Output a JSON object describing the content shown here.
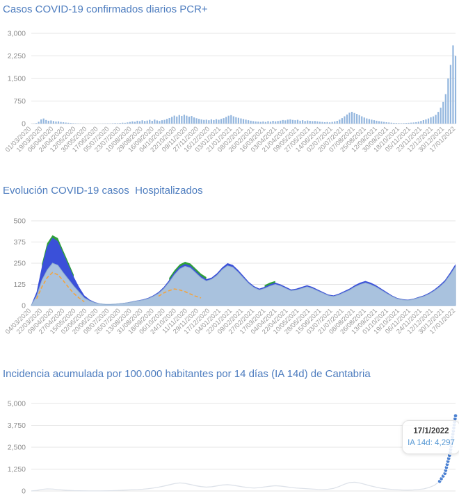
{
  "chart_data": [
    {
      "id": "pcr-daily",
      "type": "bar",
      "title": "Casos COVID-19 confirmados diarios PCR+",
      "bar_color": "#93b6de",
      "ylim": [
        0,
        3000
      ],
      "grid": true,
      "y_ticks": [
        {
          "v": 0,
          "label": "0"
        },
        {
          "v": 750,
          "label": "750"
        },
        {
          "v": 1500,
          "label": "1,500"
        },
        {
          "v": 2250,
          "label": "2,250"
        },
        {
          "v": 3000,
          "label": "3,000"
        }
      ],
      "x_labels": [
        "01/03/2020",
        "19/03/2020",
        "06/04/2020",
        "24/04/2020",
        "12/05/2020",
        "30/05/2020",
        "17/06/2020",
        "05/07/2020",
        "23/07/2020",
        "10/08/2020",
        "29/08/2020",
        "16/09/2020",
        "04/10/2020",
        "22/10/2020",
        "09/11/2020",
        "27/11/2020",
        "16/12/2020",
        "03/01/2021",
        "21/01/2021",
        "08/02/2021",
        "26/02/2021",
        "16/03/2021",
        "03/04/2021",
        "21/04/2021",
        "09/05/2021",
        "27/05/2021",
        "14/06/2021",
        "02/07/2021",
        "20/07/2021",
        "07/08/2021",
        "25/08/2021",
        "12/09/2021",
        "30/09/2021",
        "18/10/2021",
        "05/11/2021",
        "23/11/2021",
        "12/12/2021",
        "30/12/2021",
        "17/01/2022"
      ],
      "values": [
        2,
        5,
        18,
        60,
        140,
        170,
        120,
        95,
        105,
        85,
        70,
        75,
        55,
        45,
        35,
        28,
        20,
        14,
        10,
        7,
        5,
        4,
        3,
        2,
        2,
        3,
        2,
        4,
        3,
        5,
        6,
        8,
        6,
        12,
        18,
        14,
        22,
        30,
        26,
        40,
        55,
        75,
        60,
        95,
        80,
        110,
        88,
        100,
        125,
        92,
        135,
        105,
        88,
        112,
        125,
        155,
        185,
        225,
        265,
        235,
        285,
        255,
        295,
        262,
        232,
        252,
        205,
        178,
        158,
        138,
        122,
        132,
        112,
        142,
        118,
        148,
        128,
        158,
        182,
        222,
        262,
        282,
        242,
        212,
        192,
        172,
        152,
        132,
        112,
        96,
        82,
        72,
        66,
        58,
        72,
        56,
        82,
        64,
        92,
        74,
        86,
        98,
        118,
        108,
        132,
        142,
        122,
        112,
        126,
        96,
        112,
        86,
        102,
        92,
        82,
        86,
        76,
        62,
        56,
        46,
        52,
        42,
        56,
        72,
        92,
        132,
        182,
        242,
        302,
        362,
        392,
        352,
        322,
        282,
        242,
        202,
        172,
        152,
        132,
        112,
        96,
        82,
        72,
        56,
        46,
        38,
        30,
        24,
        20,
        17,
        14,
        17,
        22,
        26,
        32,
        38,
        48,
        65,
        90,
        115,
        140,
        170,
        210,
        240,
        290,
        390,
        530,
        720,
        980,
        1500,
        1950,
        2600,
        2250
      ]
    },
    {
      "id": "hospitalized",
      "type": "area",
      "title": "Evolución COVID-19 casos  Hospitalizados",
      "ylim": [
        0,
        500
      ],
      "grid": true,
      "y_ticks": [
        {
          "v": 0,
          "label": "0"
        },
        {
          "v": 125,
          "label": "125"
        },
        {
          "v": 250,
          "label": "250"
        },
        {
          "v": 375,
          "label": "375"
        },
        {
          "v": 500,
          "label": "500"
        }
      ],
      "x_labels": [
        "04/03/2020",
        "22/03/2020",
        "09/04/2020",
        "27/04/2020",
        "15/05/2020",
        "02/06/2020",
        "20/06/2020",
        "08/07/2020",
        "26/07/2020",
        "13/08/2020",
        "31/08/2020",
        "18/09/2020",
        "06/10/2020",
        "24/10/2020",
        "11/11/2020",
        "29/11/2020",
        "17/12/2020",
        "04/01/2021",
        "22/01/2021",
        "09/02/2021",
        "27/02/2021",
        "17/03/2021",
        "04/04/2021",
        "22/04/2021",
        "10/05/2021",
        "28/05/2021",
        "15/06/2021",
        "03/07/2021",
        "21/07/2021",
        "08/08/2021",
        "26/08/2021",
        "13/09/2021",
        "01/10/2021",
        "19/10/2021",
        "06/11/2021",
        "24/11/2021",
        "12/12/2021",
        "30/12/2021",
        "17/01/2022"
      ],
      "series": [
        {
          "name": "serie-verde",
          "type": "area",
          "color": "#2fa03a",
          "values": [
            null,
            null,
            245,
            368,
            415,
            398,
            326,
            254,
            182,
            null,
            null,
            null,
            null,
            null,
            null,
            null,
            null,
            null,
            null,
            null,
            null,
            null,
            null,
            null,
            null,
            null,
            163,
            208,
            243,
            258,
            248,
            218,
            188,
            168,
            null,
            null,
            null,
            null,
            null,
            null,
            null,
            null,
            null,
            null,
            120,
            135,
            145,
            null,
            null,
            null,
            null,
            null,
            null,
            null,
            null,
            null,
            null,
            null,
            null,
            null,
            null,
            null,
            null,
            null,
            null,
            null,
            null,
            null,
            null,
            null,
            null,
            null,
            null,
            null,
            null,
            null,
            null,
            null,
            null,
            null,
            null
          ]
        },
        {
          "name": "serie-azul",
          "type": "area",
          "color": "#3a50d9",
          "values": [
            5,
            80,
            230,
            350,
            400,
            380,
            310,
            240,
            170,
            110,
            60,
            35,
            20,
            12,
            8,
            8,
            10,
            14,
            18,
            24,
            30,
            36,
            45,
            60,
            80,
            110,
            150,
            195,
            230,
            245,
            235,
            205,
            175,
            155,
            165,
            190,
            225,
            250,
            240,
            210,
            175,
            140,
            115,
            100,
            110,
            125,
            135,
            125,
            110,
            95,
            100,
            110,
            120,
            110,
            95,
            80,
            65,
            60,
            70,
            85,
            100,
            120,
            135,
            145,
            135,
            120,
            100,
            80,
            60,
            45,
            38,
            35,
            40,
            50,
            60,
            75,
            95,
            120,
            150,
            195,
            245
          ]
        },
        {
          "name": "serie-principal",
          "type": "area",
          "color": "#a9c2de",
          "edge": "#8fadd0",
          "values": [
            3,
            55,
            150,
            210,
            250,
            238,
            195,
            155,
            115,
            80,
            45,
            28,
            16,
            10,
            7,
            7,
            9,
            12,
            16,
            21,
            27,
            32,
            40,
            54,
            72,
            100,
            138,
            182,
            216,
            232,
            222,
            193,
            164,
            145,
            155,
            178,
            212,
            235,
            226,
            197,
            163,
            130,
            106,
            92,
            101,
            115,
            125,
            116,
            101,
            87,
            92,
            101,
            111,
            101,
            87,
            73,
            59,
            54,
            63,
            77,
            91,
            110,
            124,
            134,
            124,
            110,
            91,
            72,
            54,
            40,
            34,
            31,
            36,
            45,
            54,
            68,
            87,
            110,
            139,
            182,
            230
          ]
        },
        {
          "name": "serie-naranja",
          "type": "line",
          "dashed": true,
          "color": "#f3a43e",
          "values": [
            null,
            40,
            110,
            165,
            195,
            182,
            148,
            108,
            72,
            45,
            22,
            null,
            null,
            null,
            null,
            null,
            null,
            null,
            null,
            null,
            null,
            null,
            null,
            null,
            55,
            75,
            88,
            98,
            92,
            82,
            68,
            55,
            45,
            null,
            null,
            null,
            null,
            null,
            null,
            null,
            null,
            null,
            null,
            null,
            null,
            null,
            null,
            null,
            null,
            null,
            null,
            null,
            null,
            null,
            null,
            null,
            null,
            null,
            null,
            null,
            null,
            null,
            null,
            null,
            null,
            null,
            null,
            null,
            null,
            null,
            null,
            null,
            null,
            null,
            null,
            null,
            null,
            null,
            null,
            null,
            null
          ]
        }
      ]
    },
    {
      "id": "ia14d",
      "type": "line",
      "title": "Incidencia acumulada por 100.000 habitantes por 14 días (IA 14d) de Cantabria",
      "line_color": "#dde2e9",
      "highlight_color": "#4d82d2",
      "highlight_from": 77,
      "ylim": [
        0,
        5000
      ],
      "grid": true,
      "y_ticks": [
        {
          "v": 0,
          "label": "0"
        },
        {
          "v": 1250,
          "label": "1,250"
        },
        {
          "v": 2500,
          "label": "2,500"
        },
        {
          "v": 3750,
          "label": "3,750"
        },
        {
          "v": 5000,
          "label": "5,000"
        }
      ],
      "x_labels": [],
      "values": [
        2,
        30,
        90,
        120,
        110,
        80,
        55,
        35,
        20,
        12,
        8,
        5,
        4,
        5,
        8,
        15,
        25,
        40,
        55,
        70,
        80,
        100,
        130,
        170,
        220,
        280,
        350,
        420,
        460,
        430,
        370,
        300,
        250,
        220,
        240,
        290,
        340,
        360,
        330,
        280,
        230,
        190,
        170,
        190,
        230,
        270,
        300,
        280,
        240,
        200,
        170,
        150,
        130,
        110,
        90,
        80,
        100,
        150,
        250,
        380,
        480,
        500,
        450,
        370,
        290,
        220,
        160,
        120,
        90,
        70,
        55,
        50,
        60,
        85,
        120,
        200,
        320,
        550,
        1000,
        2200,
        4297
      ],
      "tooltip": {
        "date": "17/1/2022",
        "label": "IA 14d: 4,297"
      }
    }
  ]
}
